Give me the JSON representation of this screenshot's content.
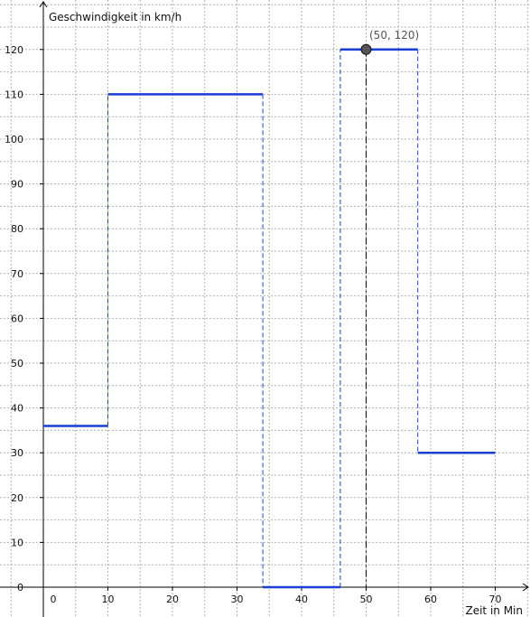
{
  "chart_data": {
    "type": "line",
    "title": "",
    "xlabel": "Zeit in Min",
    "ylabel": "Geschwindigkeit in km/h",
    "xlim": [
      -3,
      75
    ],
    "ylim": [
      -5,
      130
    ],
    "grid": true,
    "x_ticks": [
      0,
      10,
      20,
      30,
      40,
      50,
      60,
      70
    ],
    "y_ticks": [
      0,
      10,
      20,
      30,
      40,
      50,
      60,
      70,
      80,
      90,
      100,
      110,
      120
    ],
    "series": [
      {
        "type": "step",
        "segments": [
          {
            "x": [
              0,
              10
            ],
            "y": 36
          },
          {
            "x": [
              10,
              34
            ],
            "y": 110
          },
          {
            "x": [
              34,
              46
            ],
            "y": 0
          },
          {
            "x": [
              46,
              58
            ],
            "y": 120
          },
          {
            "x": [
              58,
              70
            ],
            "y": 30
          }
        ],
        "color": "#1a3fd6"
      }
    ],
    "point": {
      "x": 50,
      "y": 120,
      "label": "(50, 120)"
    },
    "colors": {
      "step": "#1a3fd6",
      "point_fill": "#555555",
      "guide": "#000000",
      "grid": "#b0b0b0",
      "axis": "#000000"
    }
  }
}
